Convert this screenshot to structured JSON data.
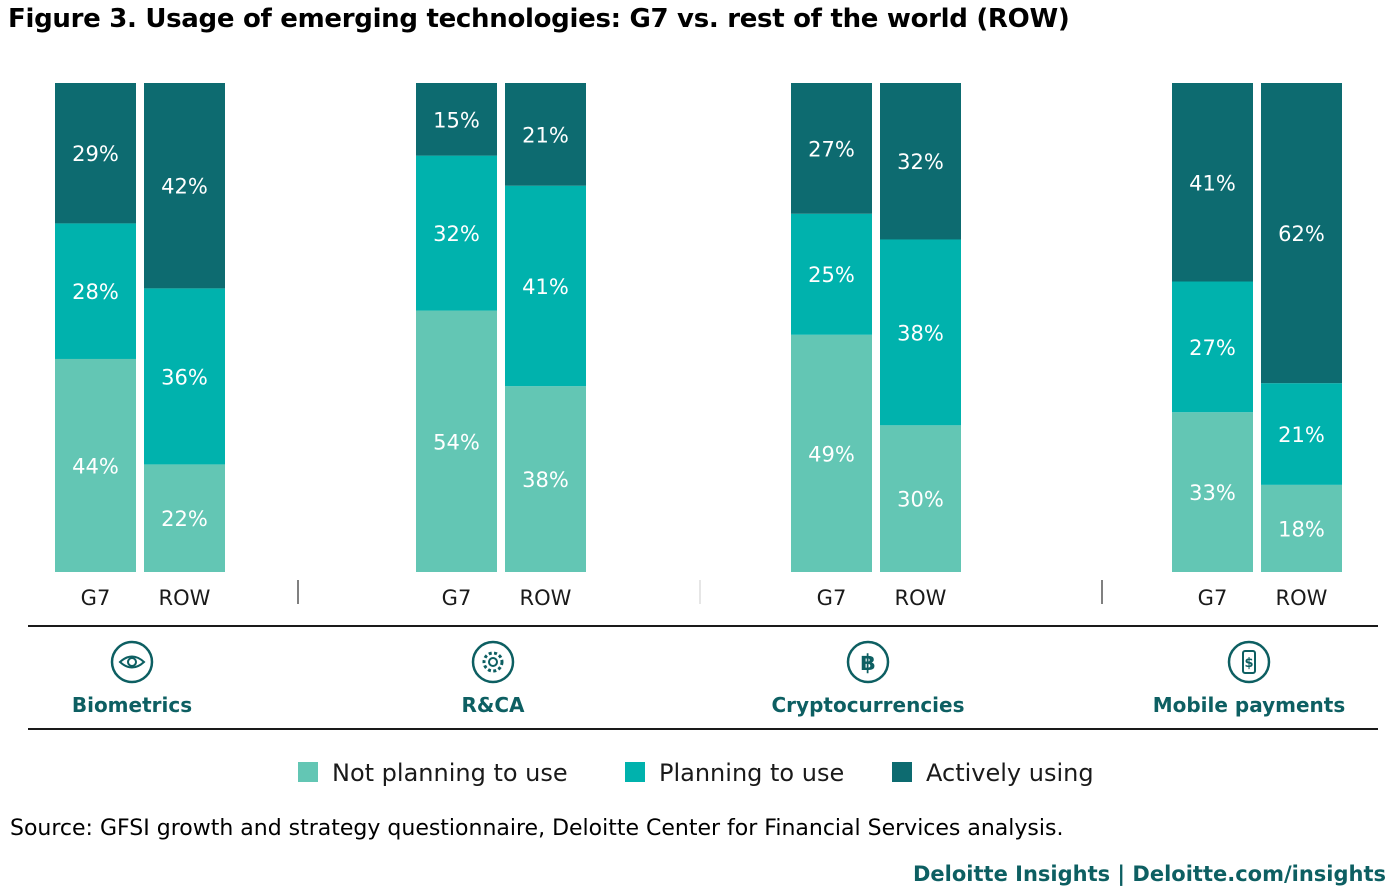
{
  "title": "Figure 3. Usage of emerging technologies: G7 vs. rest of the world (ROW)",
  "source": "Source: GFSI growth and strategy questionnaire, Deloitte Center for Financial Services analysis.",
  "footer": "Deloitte Insights | Deloitte.com/insights",
  "colors": {
    "not_planning": "#63c6b4",
    "planning": "#00b2ad",
    "actively_using": "#0d6b70",
    "group_label": "#0d5f62"
  },
  "chart_data": {
    "type": "bar",
    "stacked": true,
    "percent": true,
    "legend_position": "bottom",
    "grid": false,
    "legend": [
      "Not planning to use",
      "Planning to use",
      "Actively using"
    ],
    "groups": [
      {
        "name": "Biometrics",
        "icon": "eye-icon",
        "bars": [
          {
            "category": "G7",
            "values": [
              44,
              28,
              29
            ],
            "labels": [
              "44%",
              "28%",
              "29%"
            ]
          },
          {
            "category": "ROW",
            "values": [
              22,
              36,
              42
            ],
            "labels": [
              "22%",
              "36%",
              "42%"
            ]
          }
        ]
      },
      {
        "name": "R&CA",
        "icon": "gear-icon",
        "bars": [
          {
            "category": "G7",
            "values": [
              54,
              32,
              15
            ],
            "labels": [
              "54%",
              "32%",
              "15%"
            ]
          },
          {
            "category": "ROW",
            "values": [
              38,
              41,
              21
            ],
            "labels": [
              "38%",
              "41%",
              "21%"
            ]
          }
        ]
      },
      {
        "name": "Cryptocurrencies",
        "icon": "bitcoin-icon",
        "bars": [
          {
            "category": "G7",
            "values": [
              49,
              25,
              27
            ],
            "labels": [
              "49%",
              "25%",
              "27%"
            ]
          },
          {
            "category": "ROW",
            "values": [
              30,
              38,
              32
            ],
            "labels": [
              "30%",
              "38%",
              "32%"
            ]
          }
        ]
      },
      {
        "name": "Mobile payments",
        "icon": "mobile-payment-icon",
        "bars": [
          {
            "category": "G7",
            "values": [
              33,
              27,
              41
            ],
            "labels": [
              "33%",
              "27%",
              "41%"
            ]
          },
          {
            "category": "ROW",
            "values": [
              18,
              21,
              62
            ],
            "labels": [
              "18%",
              "21%",
              "62%"
            ]
          }
        ]
      }
    ]
  }
}
